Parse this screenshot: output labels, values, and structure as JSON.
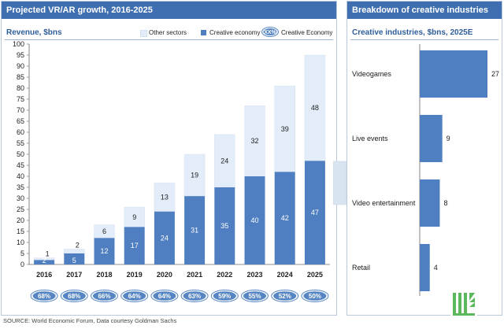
{
  "left_panel": {
    "title": "Projected VR/AR growth, 2016-2025",
    "subtitle": "Revenue, $bns",
    "legend": {
      "other_label": "Other sectors",
      "creative_label": "Creative economy",
      "pct_badge": "XX%",
      "pct_label": "Creative Economy"
    }
  },
  "right_panel": {
    "title": "Breakdown of creative industries",
    "subtitle": "Creative industries, $bns, 2025E"
  },
  "source": "SOURCE: World Economic Forum, Data courtesy Goldman Sachs",
  "colors": {
    "header_bg": "#3f6fb0",
    "creative": "#4f7fc0",
    "other": "#e3edf9",
    "oval": "#5585c3",
    "logo": "#5cb85c"
  },
  "chart_data": [
    {
      "type": "bar",
      "stacked": true,
      "title": "Projected VR/AR growth, 2016-2025",
      "ylabel": "Revenue, $bns",
      "categories": [
        "2016",
        "2017",
        "2018",
        "2019",
        "2020",
        "2021",
        "2022",
        "2023",
        "2024",
        "2025"
      ],
      "series": [
        {
          "name": "Creative economy",
          "values": [
            2,
            5,
            12,
            17,
            24,
            31,
            35,
            40,
            42,
            47
          ]
        },
        {
          "name": "Other sectors",
          "values": [
            1,
            2,
            6,
            9,
            13,
            19,
            24,
            32,
            39,
            48
          ]
        }
      ],
      "creative_share": [
        "68%",
        "68%",
        "66%",
        "64%",
        "64%",
        "63%",
        "59%",
        "55%",
        "52%",
        "50%"
      ],
      "ylim": [
        0,
        100
      ],
      "yticks": [
        0,
        5,
        10,
        15,
        20,
        25,
        30,
        35,
        40,
        45,
        50,
        55,
        60,
        65,
        70,
        75,
        80,
        85,
        90,
        95,
        100
      ],
      "grid": false,
      "legend": "top-right"
    },
    {
      "type": "bar",
      "orientation": "horizontal",
      "title": "Breakdown of creative industries",
      "subtitle": "Creative industries, $bns, 2025E",
      "categories": [
        "Videogames",
        "Live events",
        "Video entertainment",
        "Retail"
      ],
      "values": [
        27,
        9,
        8,
        4
      ]
    }
  ]
}
